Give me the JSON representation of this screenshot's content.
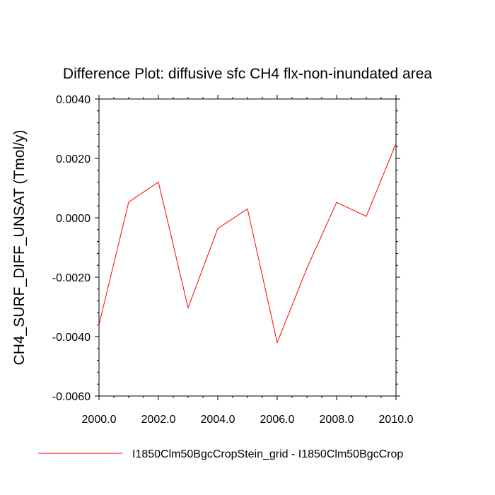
{
  "chart_data": {
    "type": "line",
    "title": "Difference Plot: diffusive sfc CH4 flx-non-inundated area",
    "ylabel": "CH4_SURF_DIFF_UNSAT  (Tmol/y)",
    "xlabel": "",
    "xlim": [
      2000,
      2010
    ],
    "ylim": [
      -0.006,
      0.004
    ],
    "x_ticks": [
      2000,
      2002,
      2004,
      2006,
      2008,
      2010
    ],
    "x_tick_labels": [
      "2000.0",
      "2002.0",
      "2004.0",
      "2006.0",
      "2008.0",
      "2010.0"
    ],
    "y_ticks": [
      -0.006,
      -0.004,
      -0.002,
      0.0,
      0.002,
      0.004
    ],
    "y_tick_labels": [
      "-0.0060",
      "-0.0040",
      "-0.0020",
      "0.0000",
      "0.0020",
      "0.0040"
    ],
    "grid": false,
    "legend_position": "bottom",
    "series": [
      {
        "name": "I1850Clm50BgcCropStein_grid - I1850Clm50BgcCrop",
        "color": "#ff0000",
        "x": [
          2000,
          2001,
          2002,
          2003,
          2004,
          2005,
          2006,
          2007,
          2008,
          2009,
          2010
        ],
        "y": [
          -0.0036,
          0.00053,
          0.0012,
          -0.00303,
          -0.00036,
          0.0003,
          -0.0042,
          -0.0017,
          0.00052,
          5e-05,
          0.0025
        ]
      }
    ]
  }
}
